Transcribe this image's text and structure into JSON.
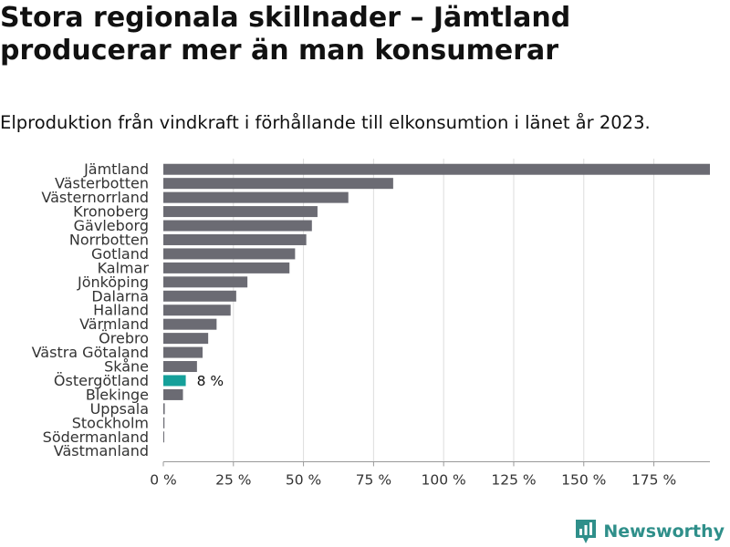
{
  "title": "Stora regionala skillnader – Jämtland producerar mer än man konsumerar",
  "subtitle": "Elproduktion från vindkraft i förhållande till elkonsumtion i länet år 2023.",
  "brand": "Newsworthy",
  "colors": {
    "bar": "#6b6b73",
    "highlight": "#15a09a",
    "grid": "#dddddd",
    "logo": "#2f8f8a"
  },
  "chart_data": {
    "type": "bar",
    "orientation": "horizontal",
    "categories": [
      "Jämtland",
      "Västerbotten",
      "Västernorrland",
      "Kronoberg",
      "Gävleborg",
      "Norrbotten",
      "Gotland",
      "Kalmar",
      "Jönköping",
      "Dalarna",
      "Halland",
      "Värmland",
      "Örebro",
      "Västra Götaland",
      "Skåne",
      "Östergötland",
      "Blekinge",
      "Uppsala",
      "Stockholm",
      "Södermanland",
      "Västmanland"
    ],
    "values": [
      195,
      82,
      66,
      55,
      53,
      51,
      47,
      45,
      30,
      26,
      24,
      19,
      16,
      14,
      12,
      8,
      7,
      0.5,
      0.4,
      0.3,
      0
    ],
    "highlight": "Östergötland",
    "highlight_label": "8 %",
    "xlim": [
      0,
      195
    ],
    "xticks": [
      0,
      25,
      50,
      75,
      100,
      125,
      150,
      175
    ],
    "xtick_labels": [
      "0 %",
      "25 %",
      "50 %",
      "75 %",
      "100 %",
      "125 %",
      "150 %",
      "175 %"
    ],
    "grid": true,
    "legend": "none"
  }
}
